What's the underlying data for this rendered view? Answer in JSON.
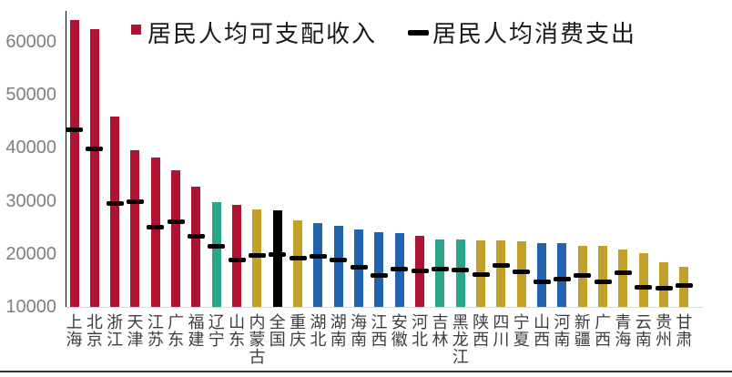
{
  "chart_data": {
    "type": "bar",
    "title": "",
    "legend": {
      "items": [
        {
          "label": "居民人均可支配收入",
          "marker": "square",
          "color": "#AE1431"
        },
        {
          "label": "居民人均消费支出",
          "marker": "dash",
          "color": "#000000"
        }
      ]
    },
    "categories": [
      "上海",
      "北京",
      "浙江",
      "天津",
      "江苏",
      "广东",
      "福建",
      "辽宁",
      "山东",
      "内蒙古",
      "全国",
      "重庆",
      "湖北",
      "湖南",
      "海南",
      "江西",
      "安徽",
      "河北",
      "吉林",
      "黑龙江",
      "陕西",
      "四川",
      "宁夏",
      "山西",
      "河南",
      "新疆",
      "广西",
      "青海",
      "云南",
      "贵州",
      "甘肃"
    ],
    "series": [
      {
        "name": "居民人均可支配收入",
        "type": "bar",
        "values": [
          64183,
          62361,
          45840,
          39506,
          38096,
          35810,
          32644,
          29701,
          29205,
          28376,
          28228,
          26386,
          25814,
          25241,
          24579,
          24080,
          23984,
          23446,
          22798,
          22726,
          22528,
          22461,
          22400,
          21990,
          21964,
          21500,
          21485,
          20757,
          20084,
          18430,
          17488
        ]
      },
      {
        "name": "居民人均消费支出",
        "type": "dash-marker",
        "values": [
          43351,
          39843,
          29471,
          29903,
          25007,
          26054,
          23355,
          21400,
          18780,
          19665,
          19853,
          19248,
          19537,
          18808,
          17400,
          15850,
          17045,
          16750,
          17100,
          16878,
          16100,
          17900,
          16700,
          14810,
          15169,
          16000,
          14700,
          16400,
          13700,
          13450,
          14106
        ]
      }
    ],
    "bar_colors": [
      "#AE1431",
      "#AE1431",
      "#AE1431",
      "#AE1431",
      "#AE1431",
      "#AE1431",
      "#AE1431",
      "#2AA58C",
      "#AE1431",
      "#C3A02C",
      "#000000",
      "#C3A02C",
      "#2263AE",
      "#2263AE",
      "#2263AE",
      "#2263AE",
      "#2263AE",
      "#AE1431",
      "#2AA58C",
      "#2AA58C",
      "#C3A02C",
      "#C3A02C",
      "#C3A02C",
      "#2263AE",
      "#2263AE",
      "#C3A02C",
      "#C3A02C",
      "#C3A02C",
      "#C3A02C",
      "#C3A02C",
      "#C3A02C"
    ],
    "y_axis": {
      "min": 10000,
      "max": 65000,
      "ticks": [
        10000,
        20000,
        30000,
        40000,
        50000,
        60000
      ],
      "tick_labels": [
        "10000",
        "20000",
        "30000",
        "40000",
        "50000",
        "60000"
      ]
    },
    "x_axis": {
      "labels_vertical": true
    },
    "grid": "off",
    "legend_position": "top"
  }
}
